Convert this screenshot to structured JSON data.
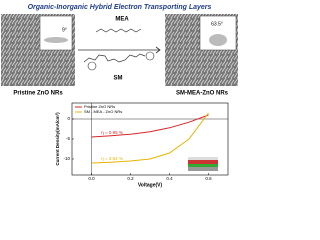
{
  "header": {
    "title": "Organic-Inorganic Hybrid Electron Transporting Layers"
  },
  "left_panel": {
    "label": "Pristine ZnO NRs",
    "angle": "9°"
  },
  "right_panel": {
    "label": "SM-MEA-ZnO NRs",
    "angle": "63.5°"
  },
  "molecules": {
    "top": "MEA",
    "bottom": "SM"
  },
  "chart_data": {
    "type": "line",
    "xlabel": "Voltage(V)",
    "ylabel": "Current Density(mA/cm²)",
    "x": [
      0,
      0.1,
      0.2,
      0.3,
      0.4,
      0.5,
      0.6
    ],
    "series": [
      {
        "name": "Pristine ZnO NRs",
        "color": "#d62728",
        "values": [
          -4.5,
          -4.2,
          -3.8,
          -3.2,
          -2.2,
          -0.8,
          1.0
        ],
        "annotation": "η = 0.95 %"
      },
      {
        "name": "SM - MEA - ZnO NRs",
        "color": "#e8b400",
        "values": [
          -11,
          -10.8,
          -10.5,
          -10,
          -8.5,
          -5,
          1.5
        ],
        "annotation": "η = 3.64 %"
      }
    ],
    "xlim": [
      -0.1,
      0.7
    ],
    "ylim": [
      -14,
      4
    ],
    "xticks": [
      {
        "value": 0,
        "label": "0.0"
      },
      {
        "value": 0.2,
        "label": "0.2"
      },
      {
        "value": 0.4,
        "label": "0.4"
      },
      {
        "value": 0.6,
        "label": "0.6"
      }
    ],
    "yticks": [
      0,
      -5,
      -10
    ]
  }
}
